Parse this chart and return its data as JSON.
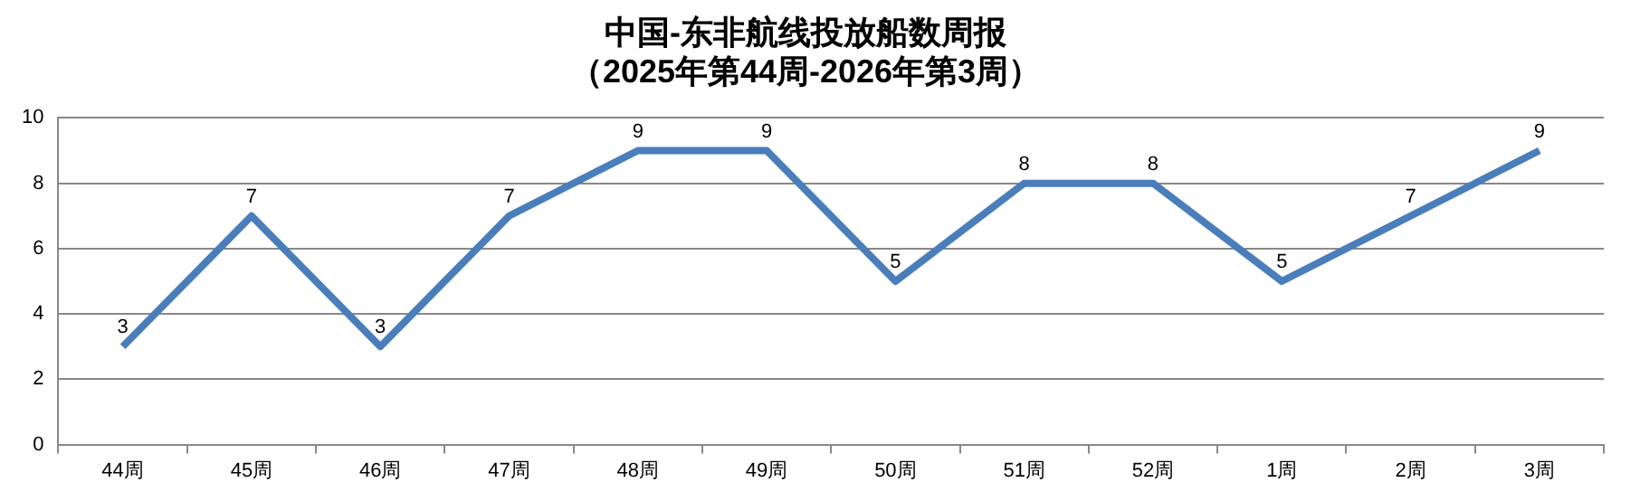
{
  "chart_data": {
    "type": "line",
    "title": "中国-东非航线投放船数周报",
    "subtitle": "（2025年第44周-2026年第3周）",
    "categories": [
      "44周",
      "45周",
      "46周",
      "47周",
      "48周",
      "49周",
      "50周",
      "51周",
      "52周",
      "1周",
      "2周",
      "3周"
    ],
    "series": [
      {
        "color": "#4a7ebb",
        "values": [
          3,
          7,
          3,
          7,
          9,
          9,
          5,
          8,
          8,
          5,
          7,
          9
        ]
      }
    ],
    "ylim": [
      0,
      10
    ],
    "yticks": [
      0,
      2,
      4,
      6,
      8,
      10
    ],
    "grid": "y",
    "data_labels": true,
    "marker": "none",
    "line_style": "solid",
    "legend": false
  }
}
